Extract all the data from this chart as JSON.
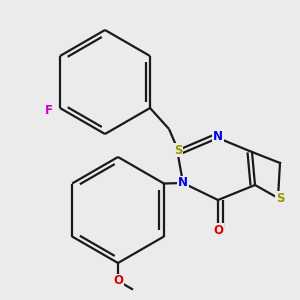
{
  "bg_color": "#ebebeb",
  "bond_color": "#1a1a1a",
  "bond_width": 1.6,
  "atom_colors": {
    "F": "#cc00cc",
    "S": "#999900",
    "N": "#0000ee",
    "O": "#dd0000",
    "C": "#1a1a1a"
  },
  "font_size": 8.5,
  "figsize": [
    3.0,
    3.0
  ],
  "dpi": 100
}
